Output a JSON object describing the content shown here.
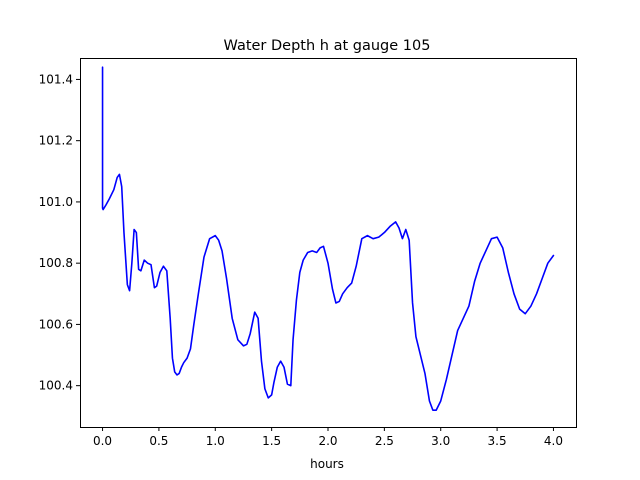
{
  "chart_data": {
    "type": "line",
    "title": "Water Depth h at gauge 105",
    "xlabel": "hours",
    "ylabel": "",
    "xlim": [
      -0.2,
      4.2
    ],
    "ylim": [
      100.265,
      101.47
    ],
    "xticks": [
      0.0,
      0.5,
      1.0,
      1.5,
      2.0,
      2.5,
      3.0,
      3.5,
      4.0
    ],
    "xtick_labels": [
      "0.0",
      "0.5",
      "1.0",
      "1.5",
      "2.0",
      "2.5",
      "3.0",
      "3.5",
      "4.0"
    ],
    "yticks": [
      100.4,
      100.6,
      100.8,
      101.0,
      101.2,
      101.4
    ],
    "ytick_labels": [
      "100.4",
      "100.6",
      "100.8",
      "101.0",
      "101.2",
      "101.4"
    ],
    "grid": false,
    "legend": "none",
    "series": [
      {
        "color": "#0000ff",
        "x": [
          0.0,
          0.0,
          0.005,
          0.03,
          0.06,
          0.1,
          0.13,
          0.15,
          0.17,
          0.19,
          0.22,
          0.24,
          0.26,
          0.28,
          0.3,
          0.32,
          0.34,
          0.37,
          0.4,
          0.43,
          0.46,
          0.48,
          0.51,
          0.54,
          0.57,
          0.6,
          0.62,
          0.64,
          0.66,
          0.68,
          0.7,
          0.72,
          0.75,
          0.78,
          0.81,
          0.85,
          0.9,
          0.95,
          1.0,
          1.03,
          1.06,
          1.1,
          1.15,
          1.2,
          1.25,
          1.28,
          1.31,
          1.35,
          1.38,
          1.41,
          1.44,
          1.47,
          1.5,
          1.52,
          1.55,
          1.58,
          1.61,
          1.64,
          1.67,
          1.69,
          1.72,
          1.75,
          1.78,
          1.82,
          1.86,
          1.9,
          1.93,
          1.96,
          2.0,
          2.04,
          2.07,
          2.1,
          2.13,
          2.17,
          2.21,
          2.25,
          2.3,
          2.35,
          2.4,
          2.45,
          2.5,
          2.55,
          2.6,
          2.63,
          2.66,
          2.69,
          2.72,
          2.75,
          2.78,
          2.82,
          2.86,
          2.9,
          2.93,
          2.96,
          3.0,
          3.05,
          3.1,
          3.15,
          3.2,
          3.25,
          3.3,
          3.35,
          3.4,
          3.45,
          3.5,
          3.55,
          3.6,
          3.65,
          3.7,
          3.75,
          3.8,
          3.85,
          3.9,
          3.95,
          4.0
        ],
        "y": [
          101.44,
          100.98,
          100.975,
          100.99,
          101.01,
          101.04,
          101.08,
          101.09,
          101.05,
          100.9,
          100.73,
          100.71,
          100.8,
          100.91,
          100.9,
          100.78,
          100.775,
          100.81,
          100.8,
          100.795,
          100.72,
          100.725,
          100.77,
          100.79,
          100.775,
          100.62,
          100.49,
          100.445,
          100.435,
          100.44,
          100.46,
          100.475,
          100.49,
          100.52,
          100.6,
          100.7,
          100.82,
          100.88,
          100.89,
          100.875,
          100.84,
          100.75,
          100.62,
          100.55,
          100.53,
          100.535,
          100.57,
          100.64,
          100.62,
          100.48,
          100.39,
          100.36,
          100.37,
          100.41,
          100.46,
          100.48,
          100.46,
          100.405,
          100.4,
          100.55,
          100.68,
          100.77,
          100.81,
          100.835,
          100.84,
          100.835,
          100.85,
          100.855,
          100.8,
          100.715,
          100.67,
          100.675,
          100.7,
          100.72,
          100.735,
          100.79,
          100.88,
          100.89,
          100.88,
          100.885,
          100.9,
          100.92,
          100.935,
          100.915,
          100.88,
          100.91,
          100.875,
          100.67,
          100.56,
          100.5,
          100.44,
          100.35,
          100.32,
          100.32,
          100.35,
          100.42,
          100.5,
          100.58,
          100.62,
          100.66,
          100.74,
          100.8,
          100.84,
          100.88,
          100.885,
          100.85,
          100.77,
          100.7,
          100.65,
          100.635,
          100.66,
          100.7,
          100.75,
          100.8,
          100.825
        ]
      }
    ]
  }
}
